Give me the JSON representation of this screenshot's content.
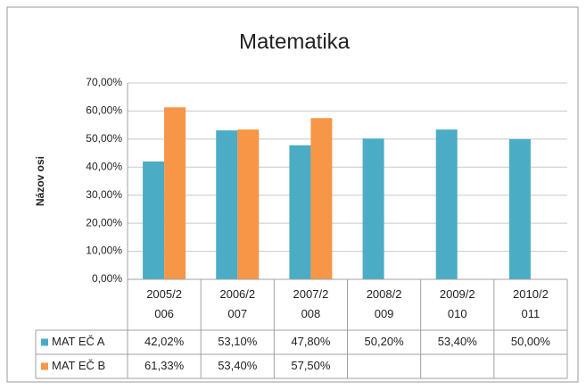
{
  "chart_data": {
    "type": "bar",
    "title": "Matematika",
    "y_label": "Názov osi",
    "categories": [
      "2005/2006",
      "2006/2007",
      "2007/2008",
      "2008/2009",
      "2009/2010",
      "2010/2011"
    ],
    "series": [
      {
        "name": "MAT EČ A",
        "color": "#4bacc6",
        "values": [
          42.02,
          53.1,
          47.8,
          50.2,
          53.4,
          50.0
        ],
        "value_labels": [
          "42,02%",
          "53,10%",
          "47,80%",
          "50,20%",
          "53,40%",
          "50,00%"
        ]
      },
      {
        "name": "MAT EČ B",
        "color": "#f79646",
        "values": [
          61.33,
          53.4,
          57.5,
          null,
          null,
          null
        ],
        "value_labels": [
          "61,33%",
          "53,40%",
          "57,50%",
          null,
          null,
          null
        ]
      }
    ],
    "ylim": [
      0,
      70
    ],
    "yticks": [
      {
        "value": 0,
        "label": "0,00%"
      },
      {
        "value": 10,
        "label": "10,00%"
      },
      {
        "value": 20,
        "label": "20,00%"
      },
      {
        "value": 30,
        "label": "30,00%"
      },
      {
        "value": 40,
        "label": "40,00%"
      },
      {
        "value": 50,
        "label": "50,00%"
      },
      {
        "value": 60,
        "label": "60,00%"
      },
      {
        "value": 70,
        "label": "70,00%"
      }
    ],
    "grid": true
  }
}
